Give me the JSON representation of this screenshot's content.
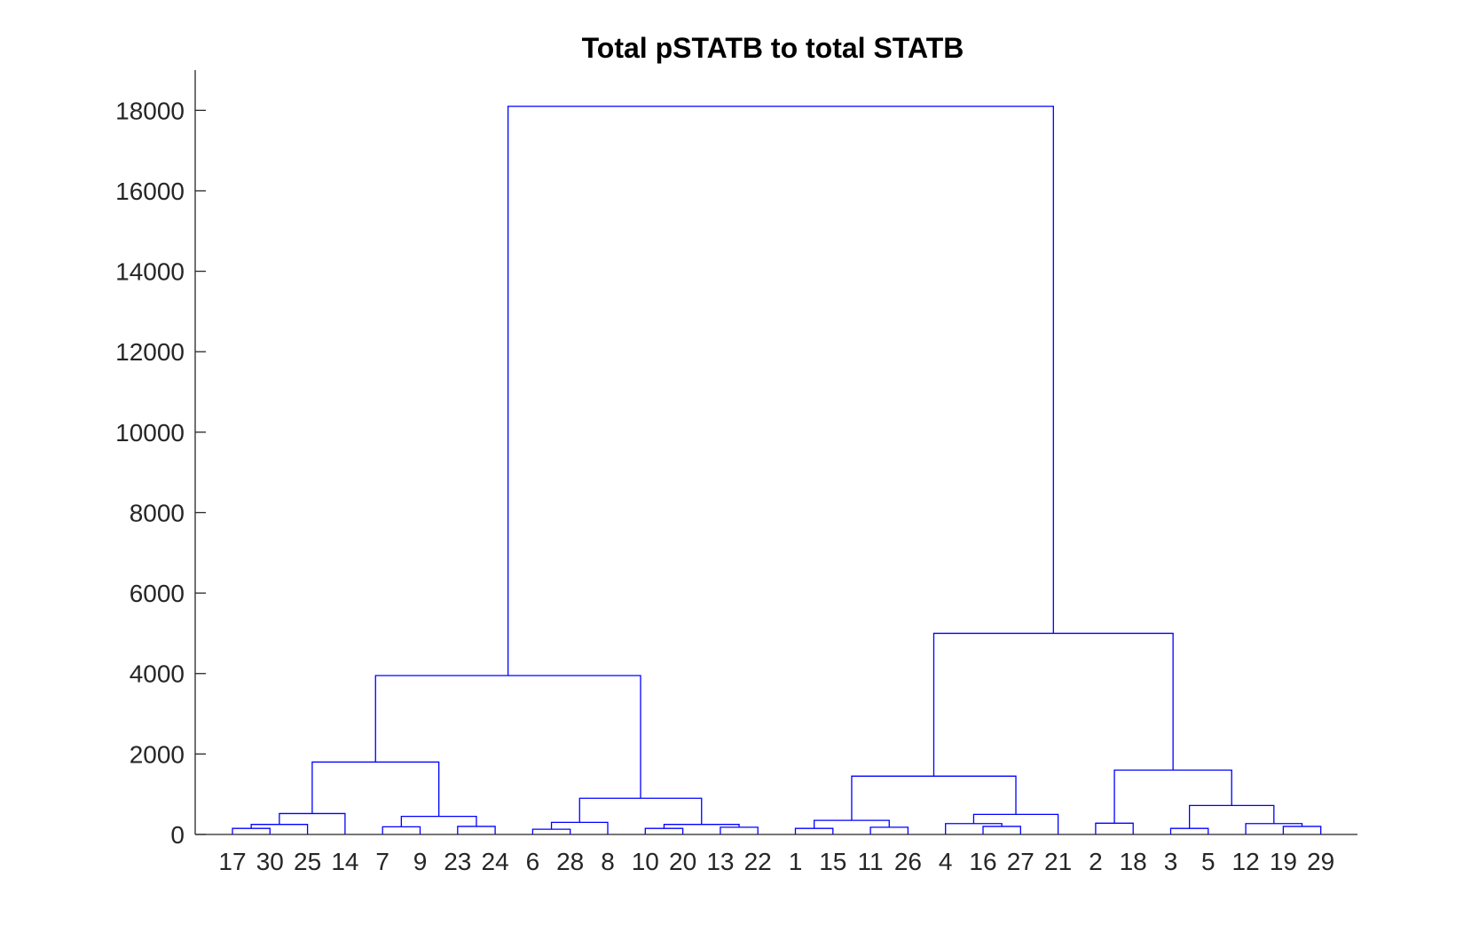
{
  "chart_data": {
    "type": "dendrogram",
    "title": "Total pSTATB to total STATB",
    "xlabel": "",
    "ylabel": "",
    "ylim": [
      0,
      19000
    ],
    "yticks": [
      0,
      2000,
      4000,
      6000,
      8000,
      10000,
      12000,
      14000,
      16000,
      18000
    ],
    "leaf_order": [
      "17",
      "30",
      "25",
      "14",
      "7",
      "9",
      "23",
      "24",
      "6",
      "28",
      "8",
      "10",
      "20",
      "13",
      "22",
      "1",
      "15",
      "11",
      "26",
      "4",
      "16",
      "27",
      "21",
      "2",
      "18",
      "3",
      "5",
      "12",
      "19",
      "29"
    ],
    "line_color": "#0000ff",
    "merges": [
      {
        "left": "17",
        "right": "30",
        "height": 150
      },
      {
        "left": "17+30",
        "right": "25",
        "height": 250
      },
      {
        "left": "17+30+25",
        "right": "14",
        "height": 520
      },
      {
        "left": "7",
        "right": "9",
        "height": 190
      },
      {
        "left": "23",
        "right": "24",
        "height": 200
      },
      {
        "left": "7+9",
        "right": "23+24",
        "height": 450
      },
      {
        "left": "17+30+25+14",
        "right": "7+9+23+24",
        "height": 1800
      },
      {
        "left": "6",
        "right": "28",
        "height": 130
      },
      {
        "left": "6+28",
        "right": "8",
        "height": 300
      },
      {
        "left": "10",
        "right": "20",
        "height": 150
      },
      {
        "left": "13",
        "right": "22",
        "height": 180
      },
      {
        "left": "10+20",
        "right": "13+22",
        "height": 250
      },
      {
        "left": "6+28+8",
        "right": "10+20+13+22",
        "height": 900
      },
      {
        "left": "17..24",
        "right": "6..22",
        "height": 3950
      },
      {
        "left": "1",
        "right": "15",
        "height": 150
      },
      {
        "left": "11",
        "right": "26",
        "height": 180
      },
      {
        "left": "1+15",
        "right": "11+26",
        "height": 350
      },
      {
        "left": "16",
        "right": "27",
        "height": 200
      },
      {
        "left": "4",
        "right": "16+27",
        "height": 270
      },
      {
        "left": "4+16+27",
        "right": "21",
        "height": 500
      },
      {
        "left": "1+15+11+26",
        "right": "4+16+27+21",
        "height": 1450
      },
      {
        "left": "2",
        "right": "18",
        "height": 280
      },
      {
        "left": "3",
        "right": "5",
        "height": 150
      },
      {
        "left": "19",
        "right": "29",
        "height": 200
      },
      {
        "left": "12",
        "right": "19+29",
        "height": 270
      },
      {
        "left": "3+5",
        "right": "12+19+29",
        "height": 720
      },
      {
        "left": "2+18",
        "right": "3+5+12+19+29",
        "height": 1600
      },
      {
        "left": "1..21",
        "right": "2..29",
        "height": 5000
      },
      {
        "left": "17..22",
        "right": "1..29",
        "height": 18100
      }
    ]
  }
}
